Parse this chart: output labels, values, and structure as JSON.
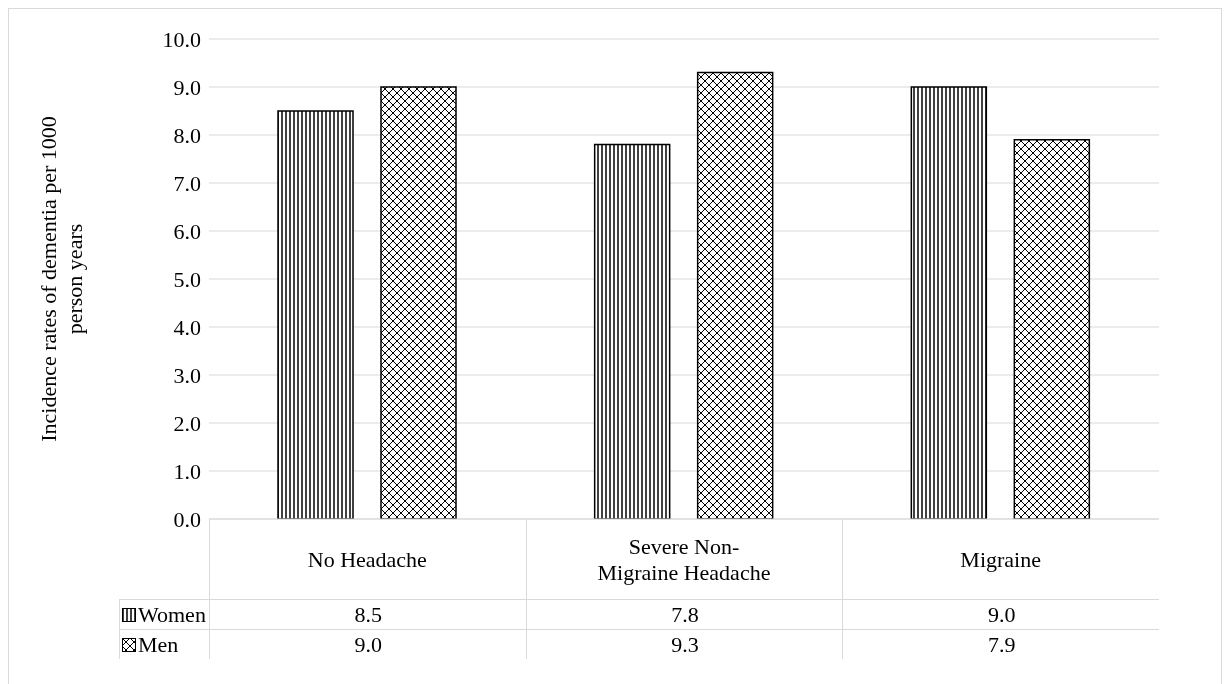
{
  "chart_data": {
    "type": "bar",
    "ylabel": "Incidence rates of dementia per 1000 person years",
    "categories": [
      "No Headache",
      "Severe Non-Migraine Headache",
      "Migraine"
    ],
    "series": [
      {
        "name": "Women",
        "color": "#000000",
        "values": [
          8.5,
          7.8,
          9.0
        ],
        "value_labels": [
          "8.5",
          "7.8",
          "9.0"
        ]
      },
      {
        "name": "Men",
        "color": "#000000",
        "values": [
          9.0,
          9.3,
          7.9
        ],
        "value_labels": [
          "9.0",
          "9.3",
          "7.9"
        ]
      }
    ],
    "ylim": [
      0,
      10
    ],
    "yticks": [
      {
        "value": 0,
        "label": "0.0"
      },
      {
        "value": 1,
        "label": "1.0"
      },
      {
        "value": 2,
        "label": "2.0"
      },
      {
        "value": 3,
        "label": "3.0"
      },
      {
        "value": 4,
        "label": "4.0"
      },
      {
        "value": 5,
        "label": "5.0"
      },
      {
        "value": 6,
        "label": "6.0"
      },
      {
        "value": 7,
        "label": "7.0"
      },
      {
        "value": 8,
        "label": "8.0"
      },
      {
        "value": 9,
        "label": "9.0"
      },
      {
        "value": 10,
        "label": "10.0"
      }
    ],
    "grid": "y",
    "legend": "bottom"
  }
}
